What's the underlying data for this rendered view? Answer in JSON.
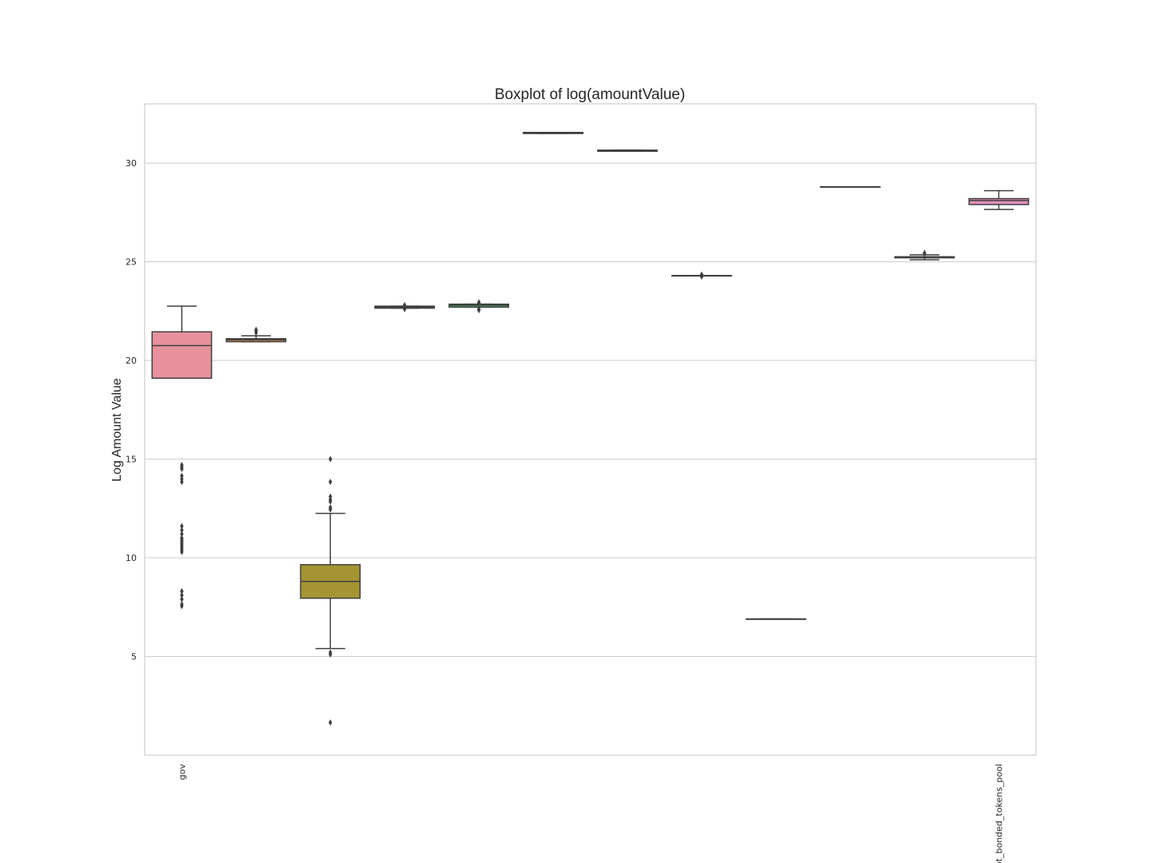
{
  "chart_data": {
    "type": "box",
    "title": "Boxplot of log(amountValue)",
    "xlabel": "",
    "ylabel": "Log Amount Value",
    "ylim": [
      0,
      33
    ],
    "yticks": [
      5,
      10,
      15,
      20,
      25,
      30
    ],
    "grid": "horizontal",
    "categories": [
      "gov",
      "",
      "",
      "",
      "",
      "",
      "",
      "",
      "",
      "",
      "",
      "ot_bonded_tokens_pool"
    ],
    "series": [
      {
        "color": "#e8919c",
        "whislo": 19.1,
        "q1": 19.1,
        "med": 20.75,
        "q3": 21.45,
        "whishi": 22.75,
        "fliers": [
          14.7,
          14.6,
          14.5,
          14.15,
          14.0,
          13.85,
          11.6,
          11.4,
          11.2,
          11.0,
          10.9,
          10.8,
          10.7,
          10.6,
          10.5,
          10.4,
          10.3,
          8.3,
          8.1,
          7.9,
          7.65,
          7.55
        ]
      },
      {
        "color": "#b8864b",
        "whislo": 20.95,
        "q1": 20.95,
        "med": 21.05,
        "q3": 21.1,
        "whishi": 21.25,
        "fliers": [
          21.4,
          21.5,
          21.55
        ]
      },
      {
        "color": "#a59433",
        "whislo": 5.4,
        "q1": 7.95,
        "med": 8.8,
        "q3": 9.65,
        "whishi": 12.25,
        "fliers": [
          15.0,
          13.85,
          13.1,
          12.95,
          12.85,
          12.55,
          12.45,
          5.2,
          5.1,
          1.65
        ]
      },
      {
        "color": "#7ea13a",
        "whislo": 22.65,
        "q1": 22.65,
        "med": 22.7,
        "q3": 22.75,
        "whishi": 22.75,
        "fliers": [
          22.8,
          22.6
        ]
      },
      {
        "color": "#46a559",
        "whislo": 22.7,
        "q1": 22.7,
        "med": 22.8,
        "q3": 22.85,
        "whishi": 22.85,
        "fliers": [
          22.95,
          22.9,
          22.6,
          22.55
        ]
      },
      {
        "color": "#3aa390",
        "whislo": 31.5,
        "q1": 31.5,
        "med": 31.55,
        "q3": 31.55,
        "whishi": 31.55,
        "fliers": []
      },
      {
        "color": "#3b9dae",
        "whislo": 30.6,
        "q1": 30.6,
        "med": 30.65,
        "q3": 30.65,
        "whishi": 30.65,
        "fliers": []
      },
      {
        "color": "#4a93c8",
        "whislo": 24.3,
        "q1": 24.3,
        "med": 24.3,
        "q3": 24.3,
        "whishi": 24.3,
        "fliers": [
          24.35,
          24.25
        ]
      },
      {
        "color": "#8f8fd6",
        "whislo": 6.9,
        "q1": 6.9,
        "med": 6.9,
        "q3": 6.9,
        "whishi": 6.9,
        "fliers": []
      },
      {
        "color": "#b787d4",
        "whislo": 28.8,
        "q1": 28.8,
        "med": 28.8,
        "q3": 28.8,
        "whishi": 28.8,
        "fliers": []
      },
      {
        "color": "#d98ac8",
        "whislo": 25.1,
        "q1": 25.2,
        "med": 25.25,
        "q3": 25.25,
        "whishi": 25.35,
        "fliers": [
          25.4,
          25.45
        ]
      },
      {
        "color": "#e48fbc",
        "whislo": 27.65,
        "q1": 27.9,
        "med": 28.1,
        "q3": 28.2,
        "whishi": 28.6,
        "fliers": []
      }
    ]
  }
}
